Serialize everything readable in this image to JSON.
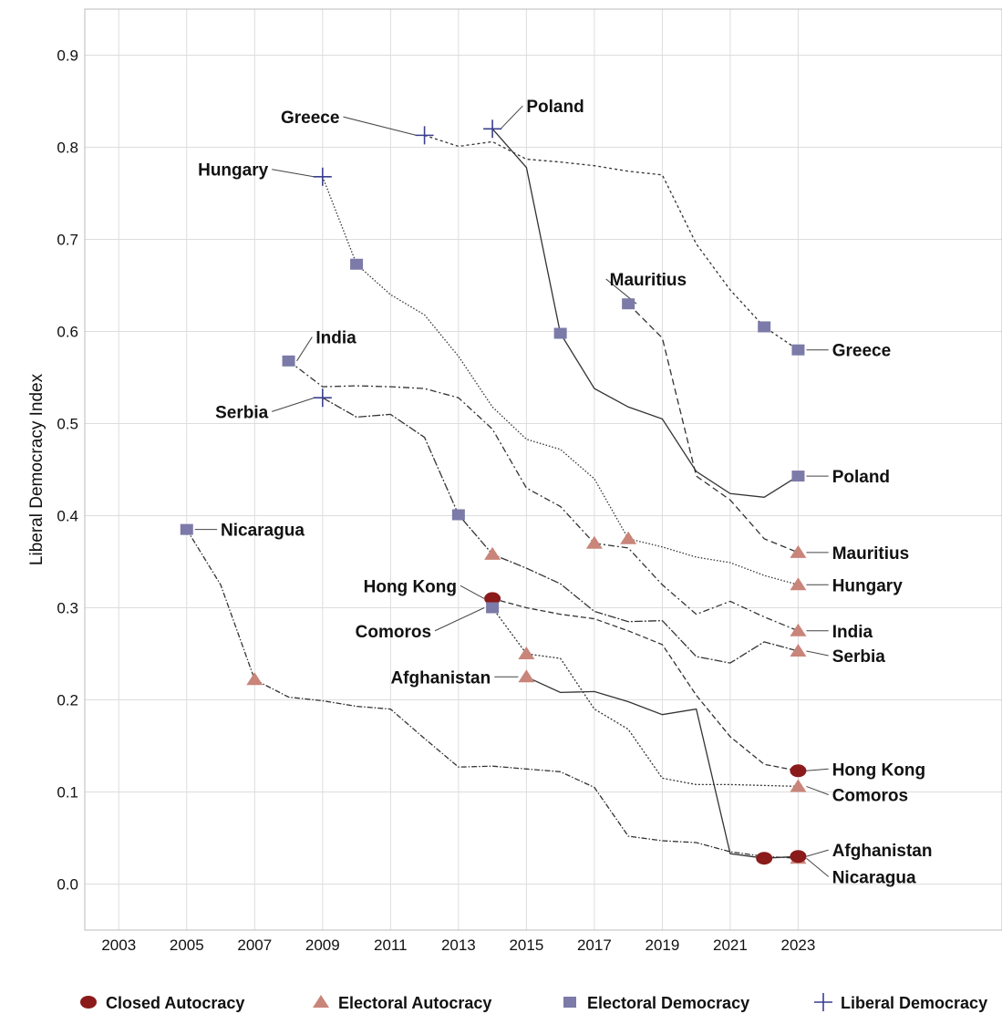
{
  "chart_data": {
    "type": "line",
    "title": "",
    "xlabel": "",
    "ylabel": "Liberal Democracy Index",
    "xlim": [
      2002,
      2029
    ],
    "ylim": [
      -0.05,
      0.95
    ],
    "x_ticks": [
      "2003",
      "2005",
      "2007",
      "2009",
      "2011",
      "2013",
      "2015",
      "2017",
      "2019",
      "2021",
      "2023"
    ],
    "y_ticks": [
      "0.0",
      "0.1",
      "0.2",
      "0.3",
      "0.4",
      "0.5",
      "0.6",
      "0.7",
      "0.8",
      "0.9"
    ],
    "grid": true,
    "legend_position": "bottom",
    "legend": [
      {
        "key": "closed",
        "label": "Closed Autocracy"
      },
      {
        "key": "electoral_autocracy",
        "label": "Electoral Autocracy"
      },
      {
        "key": "electoral_democracy",
        "label": "Electoral Democracy"
      },
      {
        "key": "liberal",
        "label": "Liberal Democracy"
      }
    ],
    "colors": {
      "closed": "#8b1a1a",
      "electoral_autocracy": "#c9857a",
      "electoral_democracy": "#7b7aa8",
      "liberal": "#3a3f8f",
      "line": "#333333",
      "grid": "#dddddd",
      "frame": "#bbbbbb"
    },
    "series": [
      {
        "name": "Greece",
        "dash": "3,3",
        "points": [
          [
            2012,
            0.813
          ],
          [
            2013,
            0.801
          ],
          [
            2014,
            0.806
          ],
          [
            2015,
            0.787
          ],
          [
            2016,
            0.784
          ],
          [
            2017,
            0.78
          ],
          [
            2018,
            0.774
          ],
          [
            2019,
            0.77
          ],
          [
            2020,
            0.695
          ],
          [
            2021,
            0.645
          ],
          [
            2022,
            0.605
          ],
          [
            2023,
            0.58
          ]
        ],
        "markers": [
          {
            "year": 2012,
            "value": 0.813,
            "type": "liberal"
          },
          {
            "year": 2022,
            "value": 0.605,
            "type": "electoral_democracy"
          },
          {
            "year": 2023,
            "value": 0.58,
            "type": "electoral_democracy"
          }
        ]
      },
      {
        "name": "Poland",
        "dash": "",
        "points": [
          [
            2014,
            0.82
          ],
          [
            2015,
            0.778
          ],
          [
            2016,
            0.598
          ],
          [
            2017,
            0.538
          ],
          [
            2018,
            0.518
          ],
          [
            2019,
            0.505
          ],
          [
            2020,
            0.448
          ],
          [
            2021,
            0.424
          ],
          [
            2022,
            0.42
          ],
          [
            2023,
            0.443
          ]
        ],
        "markers": [
          {
            "year": 2014,
            "value": 0.82,
            "type": "liberal"
          },
          {
            "year": 2016,
            "value": 0.598,
            "type": "electoral_democracy"
          },
          {
            "year": 2023,
            "value": 0.443,
            "type": "electoral_democracy"
          }
        ]
      },
      {
        "name": "Hungary",
        "dash": "1.5,2",
        "points": [
          [
            2009,
            0.768
          ],
          [
            2010,
            0.673
          ],
          [
            2011,
            0.64
          ],
          [
            2012,
            0.618
          ],
          [
            2013,
            0.573
          ],
          [
            2014,
            0.518
          ],
          [
            2015,
            0.483
          ],
          [
            2016,
            0.472
          ],
          [
            2017,
            0.44
          ],
          [
            2018,
            0.375
          ],
          [
            2019,
            0.366
          ],
          [
            2020,
            0.355
          ],
          [
            2021,
            0.349
          ],
          [
            2022,
            0.335
          ],
          [
            2023,
            0.325
          ]
        ],
        "markers": [
          {
            "year": 2009,
            "value": 0.768,
            "type": "liberal"
          },
          {
            "year": 2010,
            "value": 0.673,
            "type": "electoral_democracy"
          },
          {
            "year": 2018,
            "value": 0.375,
            "type": "electoral_autocracy"
          },
          {
            "year": 2023,
            "value": 0.325,
            "type": "electoral_autocracy"
          }
        ]
      },
      {
        "name": "Mauritius",
        "dash": "7,4",
        "points": [
          [
            2018,
            0.63
          ],
          [
            2019,
            0.593
          ],
          [
            2020,
            0.443
          ],
          [
            2021,
            0.417
          ],
          [
            2022,
            0.375
          ],
          [
            2023,
            0.36
          ]
        ],
        "markers": [
          {
            "year": 2018,
            "value": 0.63,
            "type": "electoral_democracy"
          },
          {
            "year": 2023,
            "value": 0.36,
            "type": "electoral_autocracy"
          }
        ]
      },
      {
        "name": "India",
        "dash": "7,3,2,3",
        "points": [
          [
            2008,
            0.568
          ],
          [
            2009,
            0.54
          ],
          [
            2010,
            0.541
          ],
          [
            2011,
            0.54
          ],
          [
            2012,
            0.538
          ],
          [
            2013,
            0.528
          ],
          [
            2014,
            0.494
          ],
          [
            2015,
            0.43
          ],
          [
            2016,
            0.41
          ],
          [
            2017,
            0.37
          ],
          [
            2018,
            0.365
          ],
          [
            2019,
            0.325
          ],
          [
            2020,
            0.293
          ],
          [
            2021,
            0.307
          ],
          [
            2022,
            0.29
          ],
          [
            2023,
            0.275
          ]
        ],
        "markers": [
          {
            "year": 2008,
            "value": 0.568,
            "type": "electoral_democracy"
          },
          {
            "year": 2017,
            "value": 0.37,
            "type": "electoral_autocracy"
          },
          {
            "year": 2023,
            "value": 0.275,
            "type": "electoral_autocracy"
          }
        ]
      },
      {
        "name": "Serbia",
        "dash": "9,2,2,2",
        "points": [
          [
            2009,
            0.528
          ],
          [
            2010,
            0.507
          ],
          [
            2011,
            0.51
          ],
          [
            2012,
            0.485
          ],
          [
            2013,
            0.401
          ],
          [
            2014,
            0.358
          ],
          [
            2015,
            0.343
          ],
          [
            2016,
            0.326
          ],
          [
            2017,
            0.296
          ],
          [
            2018,
            0.285
          ],
          [
            2019,
            0.286
          ],
          [
            2020,
            0.247
          ],
          [
            2021,
            0.24
          ],
          [
            2022,
            0.263
          ],
          [
            2023,
            0.253
          ]
        ],
        "markers": [
          {
            "year": 2009,
            "value": 0.528,
            "type": "liberal"
          },
          {
            "year": 2013,
            "value": 0.401,
            "type": "electoral_democracy"
          },
          {
            "year": 2014,
            "value": 0.358,
            "type": "electoral_autocracy"
          },
          {
            "year": 2023,
            "value": 0.253,
            "type": "electoral_autocracy"
          }
        ]
      },
      {
        "name": "Nicaragua",
        "dash": "6,2,1.5,2",
        "points": [
          [
            2005,
            0.385
          ],
          [
            2006,
            0.325
          ],
          [
            2007,
            0.222
          ],
          [
            2008,
            0.203
          ],
          [
            2009,
            0.199
          ],
          [
            2010,
            0.193
          ],
          [
            2011,
            0.19
          ],
          [
            2012,
            0.158
          ],
          [
            2013,
            0.127
          ],
          [
            2014,
            0.128
          ],
          [
            2015,
            0.125
          ],
          [
            2016,
            0.122
          ],
          [
            2017,
            0.105
          ],
          [
            2018,
            0.052
          ],
          [
            2019,
            0.047
          ],
          [
            2020,
            0.045
          ],
          [
            2021,
            0.035
          ],
          [
            2022,
            0.03
          ],
          [
            2023,
            0.028
          ]
        ],
        "markers": [
          {
            "year": 2005,
            "value": 0.385,
            "type": "electoral_democracy"
          },
          {
            "year": 2007,
            "value": 0.222,
            "type": "electoral_autocracy"
          },
          {
            "year": 2023,
            "value": 0.028,
            "type": "electoral_autocracy"
          }
        ]
      },
      {
        "name": "Hong Kong",
        "dash": "6,3",
        "points": [
          [
            2014,
            0.31
          ],
          [
            2015,
            0.3
          ],
          [
            2016,
            0.293
          ],
          [
            2017,
            0.288
          ],
          [
            2018,
            0.275
          ],
          [
            2019,
            0.26
          ],
          [
            2020,
            0.205
          ],
          [
            2021,
            0.16
          ],
          [
            2022,
            0.13
          ],
          [
            2023,
            0.123
          ]
        ],
        "markers": [
          {
            "year": 2014,
            "value": 0.31,
            "type": "closed"
          },
          {
            "year": 2023,
            "value": 0.123,
            "type": "closed"
          }
        ]
      },
      {
        "name": "Comoros",
        "dash": "2,2",
        "points": [
          [
            2014,
            0.3
          ],
          [
            2015,
            0.25
          ],
          [
            2016,
            0.245
          ],
          [
            2017,
            0.19
          ],
          [
            2018,
            0.168
          ],
          [
            2019,
            0.115
          ],
          [
            2020,
            0.108
          ],
          [
            2021,
            0.108
          ],
          [
            2022,
            0.107
          ],
          [
            2023,
            0.106
          ]
        ],
        "markers": [
          {
            "year": 2014,
            "value": 0.3,
            "type": "electoral_democracy"
          },
          {
            "year": 2015,
            "value": 0.25,
            "type": "electoral_autocracy"
          },
          {
            "year": 2023,
            "value": 0.106,
            "type": "electoral_autocracy"
          }
        ]
      },
      {
        "name": "Afghanistan",
        "dash": "",
        "points": [
          [
            2015,
            0.225
          ],
          [
            2016,
            0.208
          ],
          [
            2017,
            0.209
          ],
          [
            2018,
            0.198
          ],
          [
            2019,
            0.184
          ],
          [
            2020,
            0.19
          ],
          [
            2021,
            0.033
          ],
          [
            2022,
            0.028
          ],
          [
            2023,
            0.03
          ]
        ],
        "markers": [
          {
            "year": 2015,
            "value": 0.225,
            "type": "electoral_autocracy"
          },
          {
            "year": 2022,
            "value": 0.028,
            "type": "closed"
          },
          {
            "year": 2023,
            "value": 0.03,
            "type": "closed"
          }
        ]
      }
    ],
    "annotations": [
      {
        "text": "Greece",
        "ax": 2012,
        "ay": 0.813,
        "tx": 2009.5,
        "ty": 0.833,
        "anchor": "end"
      },
      {
        "text": "Poland",
        "ax": 2014,
        "ay": 0.82,
        "tx": 2015.0,
        "ty": 0.845,
        "anchor": "start"
      },
      {
        "text": "Hungary",
        "ax": 2009,
        "ay": 0.768,
        "tx": 2007.4,
        "ty": 0.776,
        "anchor": "end"
      },
      {
        "text": "Mauritius",
        "ax": 2018,
        "ay": 0.63,
        "tx": 2017.45,
        "ty": 0.657,
        "anchor": "start"
      },
      {
        "text": "India",
        "ax": 2008,
        "ay": 0.568,
        "tx": 2008.8,
        "ty": 0.594,
        "anchor": "start"
      },
      {
        "text": "Serbia",
        "ax": 2009,
        "ay": 0.528,
        "tx": 2007.4,
        "ty": 0.513,
        "anchor": "end"
      },
      {
        "text": "Nicaragua",
        "ax": 2005,
        "ay": 0.385,
        "tx": 2006.0,
        "ty": 0.385,
        "anchor": "start"
      },
      {
        "text": "Hong Kong",
        "ax": 2014,
        "ay": 0.31,
        "tx": 2012.95,
        "ty": 0.324,
        "anchor": "end"
      },
      {
        "text": "Comoros",
        "ax": 2014,
        "ay": 0.3,
        "tx": 2012.2,
        "ty": 0.275,
        "anchor": "end"
      },
      {
        "text": "Afghanistan",
        "ax": 2015,
        "ay": 0.225,
        "tx": 2013.95,
        "ty": 0.225,
        "anchor": "end"
      },
      {
        "text": "Greece",
        "ax": 2023,
        "ay": 0.58,
        "tx": 2024.0,
        "ty": 0.58,
        "anchor": "start"
      },
      {
        "text": "Poland",
        "ax": 2023,
        "ay": 0.443,
        "tx": 2024.0,
        "ty": 0.443,
        "anchor": "start"
      },
      {
        "text": "Mauritius",
        "ax": 2023,
        "ay": 0.36,
        "tx": 2024.0,
        "ty": 0.36,
        "anchor": "start"
      },
      {
        "text": "Hungary",
        "ax": 2023,
        "ay": 0.325,
        "tx": 2024.0,
        "ty": 0.325,
        "anchor": "start"
      },
      {
        "text": "India",
        "ax": 2023,
        "ay": 0.275,
        "tx": 2024.0,
        "ty": 0.275,
        "anchor": "start"
      },
      {
        "text": "Serbia",
        "ax": 2023,
        "ay": 0.253,
        "tx": 2024.0,
        "ty": 0.248,
        "anchor": "start"
      },
      {
        "text": "Hong Kong",
        "ax": 2023,
        "ay": 0.123,
        "tx": 2024.0,
        "ty": 0.125,
        "anchor": "start"
      },
      {
        "text": "Comoros",
        "ax": 2023,
        "ay": 0.106,
        "tx": 2024.0,
        "ty": 0.097,
        "anchor": "start"
      },
      {
        "text": "Afghanistan",
        "ax": 2023,
        "ay": 0.03,
        "tx": 2024.0,
        "ty": 0.037,
        "anchor": "start"
      },
      {
        "text": "Nicaragua",
        "ax": 2023,
        "ay": 0.028,
        "tx": 2024.0,
        "ty": 0.008,
        "anchor": "start"
      }
    ]
  }
}
